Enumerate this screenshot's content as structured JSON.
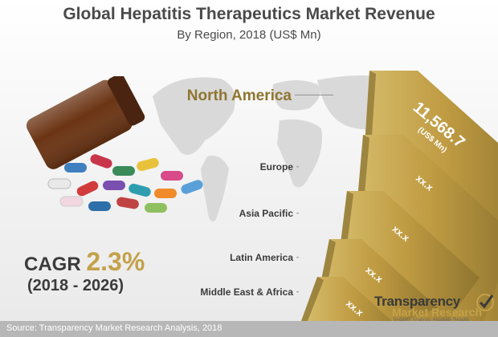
{
  "header": {
    "title": "Global Hepatitis Therapeutics Market Revenue",
    "subtitle": "By Region, 2018 (US$ Mn)"
  },
  "chart_data": {
    "type": "bar",
    "title": "Global Hepatitis Therapeutics Market Revenue",
    "subtitle": "By Region, 2018 (US$ Mn)",
    "categories": [
      "North America",
      "Europe",
      "Asia Pacific",
      "Latin America",
      "Middle East & Africa"
    ],
    "values": [
      11568.7,
      null,
      null,
      null,
      null
    ],
    "value_labels": [
      "11,568.7",
      "xx.x",
      "xx.x",
      "xx.x",
      "xx.x"
    ],
    "unit_label": "(US$ Mn)",
    "xlabel": "",
    "ylabel": "",
    "legend": "none",
    "grid": false
  },
  "cagr": {
    "label": "CAGR",
    "value": "2.3%",
    "period": "(2018 - 2026)"
  },
  "footer": {
    "source": "Source: Transparency Market Research Analysis, 2018"
  },
  "logo": {
    "line1": "Transparency",
    "line2": "Market Research",
    "tagline": "In-depth Analysis. Accurate Results"
  },
  "colors": {
    "accent_gold": "#c4a14a",
    "bar_dark": "#8f7530",
    "text_dark": "#3b3b3b",
    "footer_gray": "#b7b7b7"
  },
  "icons": [
    "world-map-icon",
    "pill-bottle-icon",
    "checkmark-logo-icon"
  ]
}
